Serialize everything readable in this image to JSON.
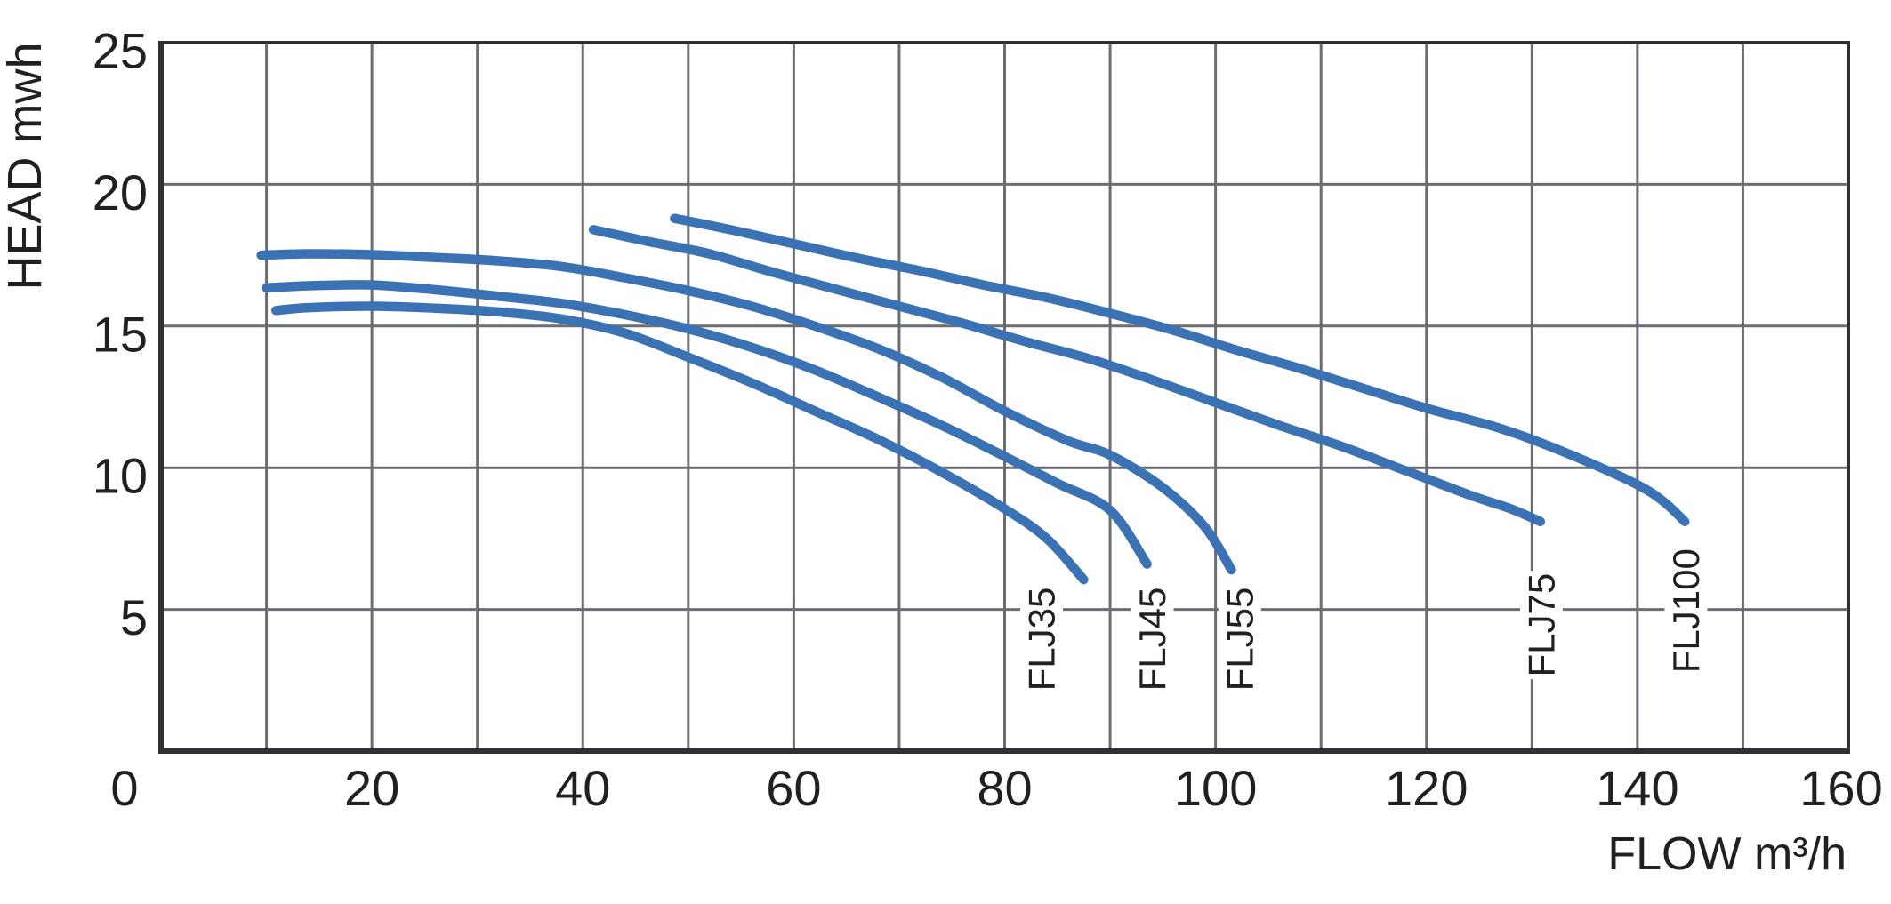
{
  "chart_data": {
    "type": "line",
    "title": "",
    "xlabel": "FLOW  m³/h",
    "ylabel": "HEAD mwh",
    "xlim": [
      0,
      160
    ],
    "ylim": [
      0,
      25
    ],
    "x_ticks": [
      0,
      20,
      40,
      60,
      80,
      100,
      120,
      140,
      160
    ],
    "y_ticks": [
      5,
      10,
      15,
      20,
      25
    ],
    "x_gridline_step": 10,
    "y_gridline_step": 5,
    "grid": true,
    "legend_position": "inline-rotated-labels-at-curve-ends",
    "series": [
      {
        "name": "FLJ35",
        "points": [
          [
            10.9,
            15.55
          ],
          [
            14,
            15.65
          ],
          [
            20,
            15.7
          ],
          [
            26,
            15.63
          ],
          [
            32,
            15.5
          ],
          [
            38,
            15.25
          ],
          [
            44,
            14.75
          ],
          [
            50,
            13.9
          ],
          [
            56,
            13.0
          ],
          [
            62,
            12.0
          ],
          [
            68,
            11.0
          ],
          [
            74,
            9.85
          ],
          [
            80,
            8.55
          ],
          [
            84,
            7.5
          ],
          [
            87.5,
            6.05
          ]
        ],
        "label_flow": 83.5,
        "label_head": 3.95,
        "label_len": 122
      },
      {
        "name": "FLJ45",
        "points": [
          [
            10,
            16.35
          ],
          [
            14,
            16.42
          ],
          [
            20,
            16.45
          ],
          [
            26,
            16.28
          ],
          [
            32,
            16.05
          ],
          [
            38,
            15.8
          ],
          [
            44,
            15.4
          ],
          [
            50,
            14.9
          ],
          [
            56,
            14.25
          ],
          [
            62,
            13.45
          ],
          [
            68,
            12.5
          ],
          [
            74,
            11.5
          ],
          [
            80,
            10.4
          ],
          [
            85,
            9.45
          ],
          [
            90,
            8.5
          ],
          [
            93.5,
            6.6
          ]
        ],
        "label_flow": 94.0,
        "label_head": 3.95,
        "label_len": 122
      },
      {
        "name": "FLJ55",
        "points": [
          [
            9.5,
            17.5
          ],
          [
            14,
            17.55
          ],
          [
            20,
            17.52
          ],
          [
            26,
            17.42
          ],
          [
            32,
            17.3
          ],
          [
            38,
            17.1
          ],
          [
            44,
            16.7
          ],
          [
            50,
            16.25
          ],
          [
            56,
            15.7
          ],
          [
            62,
            15.0
          ],
          [
            68,
            14.2
          ],
          [
            74,
            13.2
          ],
          [
            80,
            12.0
          ],
          [
            86,
            10.95
          ],
          [
            90,
            10.45
          ],
          [
            95,
            9.3
          ],
          [
            99,
            7.9
          ],
          [
            101.5,
            6.4
          ]
        ],
        "label_flow": 102.3,
        "label_head": 3.95,
        "label_len": 122
      },
      {
        "name": "FLJ75",
        "points": [
          [
            41,
            18.4
          ],
          [
            46,
            18.0
          ],
          [
            52,
            17.55
          ],
          [
            58,
            16.9
          ],
          [
            64,
            16.3
          ],
          [
            70,
            15.7
          ],
          [
            76,
            15.1
          ],
          [
            82,
            14.45
          ],
          [
            88,
            13.85
          ],
          [
            94,
            13.1
          ],
          [
            100,
            12.3
          ],
          [
            106,
            11.5
          ],
          [
            112,
            10.75
          ],
          [
            118,
            9.9
          ],
          [
            124,
            9.05
          ],
          [
            128,
            8.55
          ],
          [
            130.8,
            8.1
          ]
        ],
        "label_flow": 130.9,
        "label_head": 4.45,
        "label_len": 122
      },
      {
        "name": "FLJ100",
        "points": [
          [
            48.7,
            18.8
          ],
          [
            54,
            18.4
          ],
          [
            60,
            17.9
          ],
          [
            66,
            17.4
          ],
          [
            72,
            16.95
          ],
          [
            78,
            16.45
          ],
          [
            84,
            16.0
          ],
          [
            90,
            15.45
          ],
          [
            96,
            14.85
          ],
          [
            102,
            14.15
          ],
          [
            108,
            13.5
          ],
          [
            114,
            12.8
          ],
          [
            120,
            12.1
          ],
          [
            126,
            11.5
          ],
          [
            130,
            11.0
          ],
          [
            135,
            10.25
          ],
          [
            140,
            9.4
          ],
          [
            142.5,
            8.8
          ],
          [
            144.5,
            8.1
          ]
        ],
        "label_flow": 144.6,
        "label_head": 4.95,
        "label_len": 152
      }
    ],
    "colors": {
      "curve": "#3a72b4",
      "gridline": "#6a6d72",
      "border": "#2e3033",
      "text": "#231f20",
      "background": "#ffffff"
    }
  }
}
